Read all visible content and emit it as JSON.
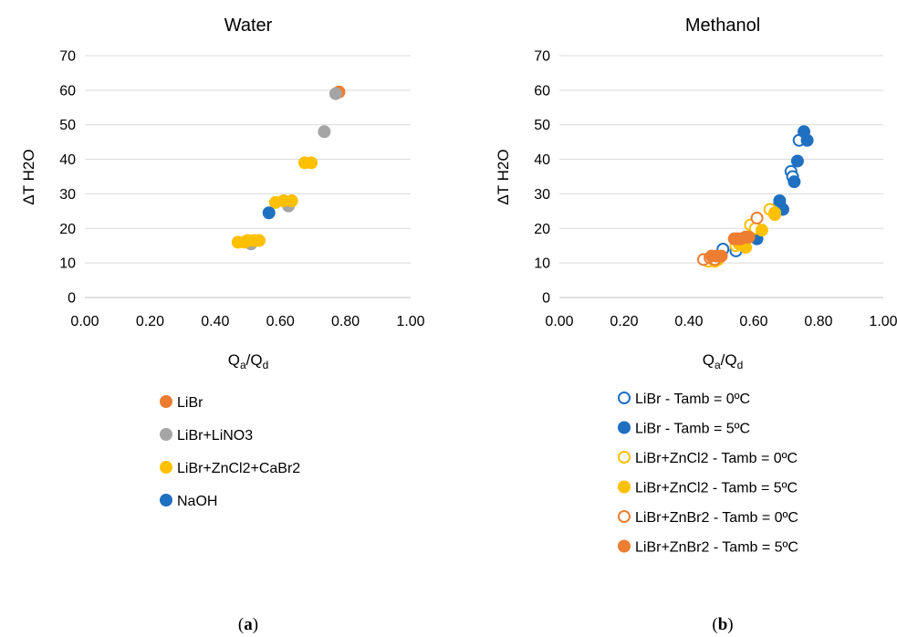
{
  "panel_labels": [
    "(a)",
    "(b)"
  ],
  "chart_data": [
    {
      "type": "scatter",
      "title": "Water",
      "xlabel": "Qa/Qd",
      "xlabel_main": "Q",
      "xlabel_sub1": "a",
      "xlabel_mid": "/Q",
      "xlabel_sub2": "d",
      "ylabel": "ΔT H2O",
      "xlim": [
        0,
        1
      ],
      "ylim": [
        0,
        70
      ],
      "x_ticks": [
        "0.00",
        "0.20",
        "0.40",
        "0.60",
        "0.80",
        "1.00"
      ],
      "y_ticks": [
        "0",
        "10",
        "20",
        "30",
        "40",
        "50",
        "60",
        "70"
      ],
      "grid": "horizontal",
      "legend_position": "bottom",
      "series": [
        {
          "name": "LiBr",
          "color": "#ED7D31",
          "marker": "filled",
          "points": [
            [
              0.78,
              59.5
            ]
          ]
        },
        {
          "name": "LiBr+LiNO3",
          "color": "#A5A5A5",
          "marker": "filled",
          "points": [
            [
              0.77,
              59
            ],
            [
              0.735,
              48
            ],
            [
              0.625,
              26.5
            ],
            [
              0.51,
              15.5
            ]
          ]
        },
        {
          "name": "LiBr+ZnCl2+CaBr2",
          "color": "#FFC000",
          "marker": "filled",
          "points": [
            [
              0.47,
              16
            ],
            [
              0.49,
              16
            ],
            [
              0.5,
              16.5
            ],
            [
              0.52,
              16.5
            ],
            [
              0.535,
              16.5
            ],
            [
              0.585,
              27.5
            ],
            [
              0.61,
              28
            ],
            [
              0.635,
              28
            ],
            [
              0.675,
              39
            ],
            [
              0.695,
              39
            ]
          ]
        },
        {
          "name": "NaOH",
          "color": "#1F70C1",
          "marker": "filled",
          "points": [
            [
              0.565,
              24.5
            ]
          ]
        }
      ]
    },
    {
      "type": "scatter",
      "title": "Methanol",
      "xlabel": "Qa/Qd",
      "xlabel_main": "Q",
      "xlabel_sub1": "a",
      "xlabel_mid": "/Q",
      "xlabel_sub2": "d",
      "ylabel": "ΔT H2O",
      "xlim": [
        0,
        1
      ],
      "ylim": [
        0,
        70
      ],
      "x_ticks": [
        "0.00",
        "0.20",
        "0.40",
        "0.60",
        "0.80",
        "1.00"
      ],
      "y_ticks": [
        "0",
        "10",
        "20",
        "30",
        "40",
        "50",
        "60",
        "70"
      ],
      "grid": "horizontal",
      "legend_position": "bottom",
      "series": [
        {
          "name": "LiBr - Tamb = 0ºC",
          "color": "#1F70C1",
          "marker": "open",
          "points": [
            [
              0.505,
              14
            ],
            [
              0.545,
              13.5
            ],
            [
              0.68,
              27
            ],
            [
              0.715,
              36.5
            ],
            [
              0.72,
              35
            ],
            [
              0.74,
              45.5
            ]
          ]
        },
        {
          "name": "LiBr - Tamb = 5ºC",
          "color": "#1F70C1",
          "marker": "filled",
          "points": [
            [
              0.61,
              17
            ],
            [
              0.68,
              28
            ],
            [
              0.69,
              25.5
            ],
            [
              0.725,
              33.5
            ],
            [
              0.735,
              39.5
            ],
            [
              0.755,
              48
            ],
            [
              0.765,
              45.5
            ]
          ]
        },
        {
          "name": "LiBr+ZnCl2 - Tamb = 0ºC",
          "color": "#FFC000",
          "marker": "open",
          "points": [
            [
              0.46,
              10.5
            ],
            [
              0.48,
              10.5
            ],
            [
              0.545,
              15
            ],
            [
              0.59,
              21
            ],
            [
              0.605,
              20
            ],
            [
              0.65,
              25.5
            ],
            [
              0.665,
              24.5
            ]
          ]
        },
        {
          "name": "LiBr+ZnCl2 - Tamb = 5ºC",
          "color": "#FFC000",
          "marker": "filled",
          "points": [
            [
              0.475,
              11
            ],
            [
              0.49,
              11
            ],
            [
              0.555,
              15.5
            ],
            [
              0.575,
              14.5
            ],
            [
              0.625,
              19.5
            ],
            [
              0.665,
              24
            ]
          ]
        },
        {
          "name": "LiBr+ZnBr2 - Tamb = 0ºC",
          "color": "#ED7D31",
          "marker": "open",
          "points": [
            [
              0.445,
              11
            ],
            [
              0.465,
              11.5
            ],
            [
              0.48,
              11
            ],
            [
              0.55,
              17
            ],
            [
              0.575,
              17.5
            ],
            [
              0.61,
              23
            ]
          ]
        },
        {
          "name": "LiBr+ZnBr2 - Tamb = 5ºC",
          "color": "#ED7D31",
          "marker": "filled",
          "points": [
            [
              0.47,
              12
            ],
            [
              0.485,
              12
            ],
            [
              0.5,
              12
            ],
            [
              0.54,
              17
            ],
            [
              0.56,
              17
            ],
            [
              0.585,
              17.5
            ]
          ]
        }
      ]
    }
  ]
}
